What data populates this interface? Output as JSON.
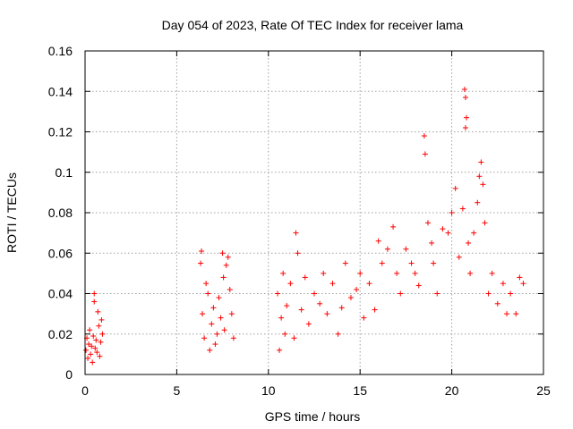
{
  "chart_data": {
    "type": "scatter",
    "title": "Day 054 of 2023, Rate Of TEC Index for receiver lama",
    "xlabel": "GPS time / hours",
    "ylabel": "ROTI / TECUs",
    "xlim": [
      0,
      25
    ],
    "ylim": [
      0,
      0.16
    ],
    "x_ticks": [
      0,
      5,
      10,
      15,
      20,
      25
    ],
    "y_ticks": [
      0,
      0.02,
      0.04,
      0.06,
      0.08,
      0.1,
      0.12,
      0.14,
      0.16
    ],
    "x_tick_labels": [
      "0",
      "5",
      "10",
      "15",
      "20",
      "25"
    ],
    "y_tick_labels": [
      "0",
      "0.02",
      "0.04",
      "0.06",
      "0.08",
      "0.1",
      "0.12",
      "0.14",
      "0.16"
    ],
    "grid": true,
    "marker": "plus",
    "color": "#ff0000",
    "series": [
      {
        "points": [
          [
            0.05,
            0.012
          ],
          [
            0.1,
            0.018
          ],
          [
            0.15,
            0.008
          ],
          [
            0.2,
            0.015
          ],
          [
            0.25,
            0.022
          ],
          [
            0.3,
            0.01
          ],
          [
            0.35,
            0.014
          ],
          [
            0.4,
            0.006
          ],
          [
            0.45,
            0.019
          ],
          [
            0.5,
            0.036
          ],
          [
            0.5,
            0.04
          ],
          [
            0.55,
            0.013
          ],
          [
            0.6,
            0.017
          ],
          [
            0.65,
            0.011
          ],
          [
            0.7,
            0.031
          ],
          [
            0.75,
            0.024
          ],
          [
            0.8,
            0.009
          ],
          [
            0.85,
            0.016
          ],
          [
            0.9,
            0.027
          ],
          [
            0.95,
            0.02
          ],
          [
            6.3,
            0.055
          ],
          [
            6.35,
            0.061
          ],
          [
            6.4,
            0.03
          ],
          [
            6.5,
            0.018
          ],
          [
            6.6,
            0.045
          ],
          [
            6.7,
            0.04
          ],
          [
            6.8,
            0.012
          ],
          [
            6.9,
            0.025
          ],
          [
            7.0,
            0.033
          ],
          [
            7.1,
            0.015
          ],
          [
            7.2,
            0.02
          ],
          [
            7.3,
            0.038
          ],
          [
            7.4,
            0.028
          ],
          [
            7.5,
            0.06
          ],
          [
            7.55,
            0.048
          ],
          [
            7.6,
            0.022
          ],
          [
            7.7,
            0.054
          ],
          [
            7.8,
            0.058
          ],
          [
            7.9,
            0.042
          ],
          [
            8.0,
            0.03
          ],
          [
            8.1,
            0.018
          ],
          [
            10.5,
            0.04
          ],
          [
            10.6,
            0.012
          ],
          [
            10.7,
            0.028
          ],
          [
            10.8,
            0.05
          ],
          [
            10.9,
            0.02
          ],
          [
            11.0,
            0.034
          ],
          [
            11.2,
            0.045
          ],
          [
            11.4,
            0.018
          ],
          [
            11.5,
            0.07
          ],
          [
            11.6,
            0.06
          ],
          [
            11.8,
            0.032
          ],
          [
            12.0,
            0.048
          ],
          [
            12.2,
            0.025
          ],
          [
            12.5,
            0.04
          ],
          [
            12.8,
            0.035
          ],
          [
            13.0,
            0.05
          ],
          [
            13.2,
            0.03
          ],
          [
            13.5,
            0.045
          ],
          [
            13.8,
            0.02
          ],
          [
            14.0,
            0.033
          ],
          [
            14.2,
            0.055
          ],
          [
            14.5,
            0.038
          ],
          [
            14.8,
            0.042
          ],
          [
            15.0,
            0.05
          ],
          [
            15.2,
            0.028
          ],
          [
            15.5,
            0.045
          ],
          [
            15.8,
            0.032
          ],
          [
            16.0,
            0.066
          ],
          [
            16.2,
            0.055
          ],
          [
            16.5,
            0.062
          ],
          [
            16.8,
            0.073
          ],
          [
            17.0,
            0.05
          ],
          [
            17.2,
            0.04
          ],
          [
            17.5,
            0.062
          ],
          [
            17.8,
            0.055
          ],
          [
            18.0,
            0.05
          ],
          [
            18.2,
            0.044
          ],
          [
            18.5,
            0.118
          ],
          [
            18.55,
            0.109
          ],
          [
            18.7,
            0.075
          ],
          [
            18.9,
            0.065
          ],
          [
            19.0,
            0.055
          ],
          [
            19.2,
            0.04
          ],
          [
            19.5,
            0.072
          ],
          [
            19.8,
            0.07
          ],
          [
            20.0,
            0.08
          ],
          [
            20.2,
            0.092
          ],
          [
            20.4,
            0.058
          ],
          [
            20.6,
            0.082
          ],
          [
            20.7,
            0.141
          ],
          [
            20.75,
            0.137
          ],
          [
            20.8,
            0.127
          ],
          [
            20.75,
            0.122
          ],
          [
            20.9,
            0.065
          ],
          [
            21.0,
            0.05
          ],
          [
            21.2,
            0.07
          ],
          [
            21.4,
            0.085
          ],
          [
            21.5,
            0.098
          ],
          [
            21.6,
            0.105
          ],
          [
            21.7,
            0.094
          ],
          [
            21.8,
            0.075
          ],
          [
            22.0,
            0.04
          ],
          [
            22.2,
            0.05
          ],
          [
            22.5,
            0.035
          ],
          [
            22.8,
            0.045
          ],
          [
            23.0,
            0.03
          ],
          [
            23.2,
            0.04
          ],
          [
            23.5,
            0.03
          ],
          [
            23.7,
            0.048
          ],
          [
            23.9,
            0.045
          ]
        ]
      }
    ]
  }
}
